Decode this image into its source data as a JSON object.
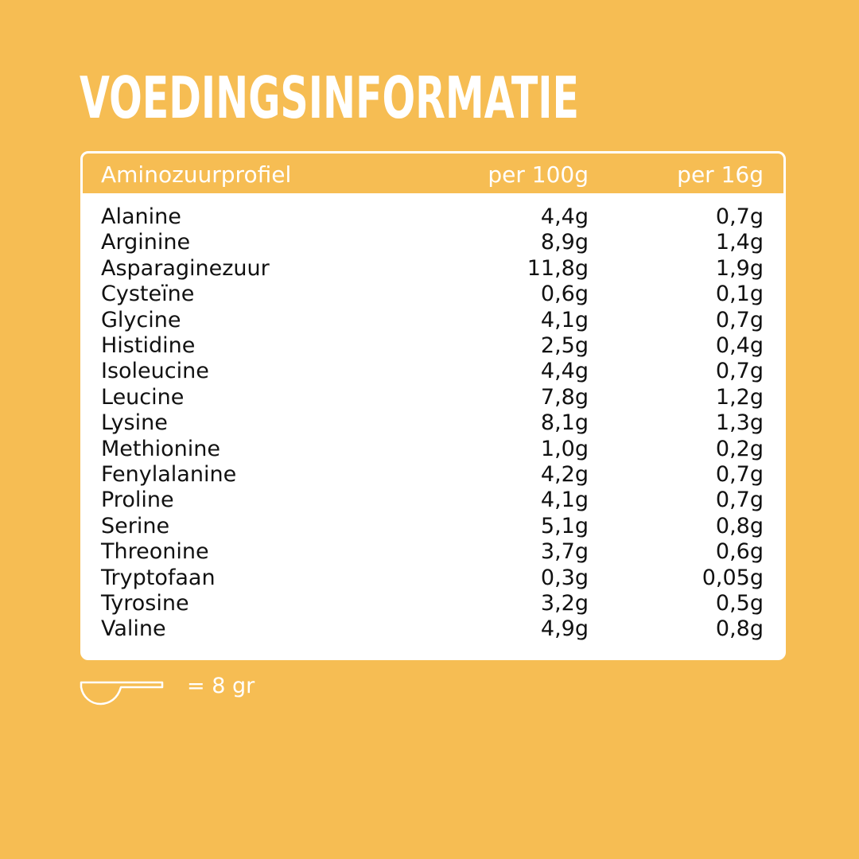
{
  "header": {
    "title": "VOEDINGSINFORMATIE"
  },
  "table": {
    "columns": [
      "Aminozuurprofiel",
      "per 100g",
      "per 16g"
    ],
    "rows": [
      [
        "Alanine",
        "4,4g",
        "0,7g"
      ],
      [
        "Arginine",
        "8,9g",
        "1,4g"
      ],
      [
        "Asparaginezuur",
        "11,8g",
        "1,9g"
      ],
      [
        "Cysteïne",
        "0,6g",
        "0,1g"
      ],
      [
        "Glycine",
        "4,1g",
        "0,7g"
      ],
      [
        "Histidine",
        "2,5g",
        "0,4g"
      ],
      [
        "Isoleucine",
        "4,4g",
        "0,7g"
      ],
      [
        "Leucine",
        "7,8g",
        "1,2g"
      ],
      [
        "Lysine",
        "8,1g",
        "1,3g"
      ],
      [
        "Methionine",
        "1,0g",
        "0,2g"
      ],
      [
        "Fenylalanine",
        "4,2g",
        "0,7g"
      ],
      [
        "Proline",
        "4,1g",
        "0,7g"
      ],
      [
        "Serine",
        "5,1g",
        "0,8g"
      ],
      [
        "Threonine",
        "3,7g",
        "0,6g"
      ],
      [
        "Tryptofaan",
        "0,3g",
        "0,05g"
      ],
      [
        "Tyrosine",
        "3,2g",
        "0,5g"
      ],
      [
        "Valine",
        "4,9g",
        "0,8g"
      ]
    ]
  },
  "footer": {
    "scoop_note": "= 8 gr"
  }
}
